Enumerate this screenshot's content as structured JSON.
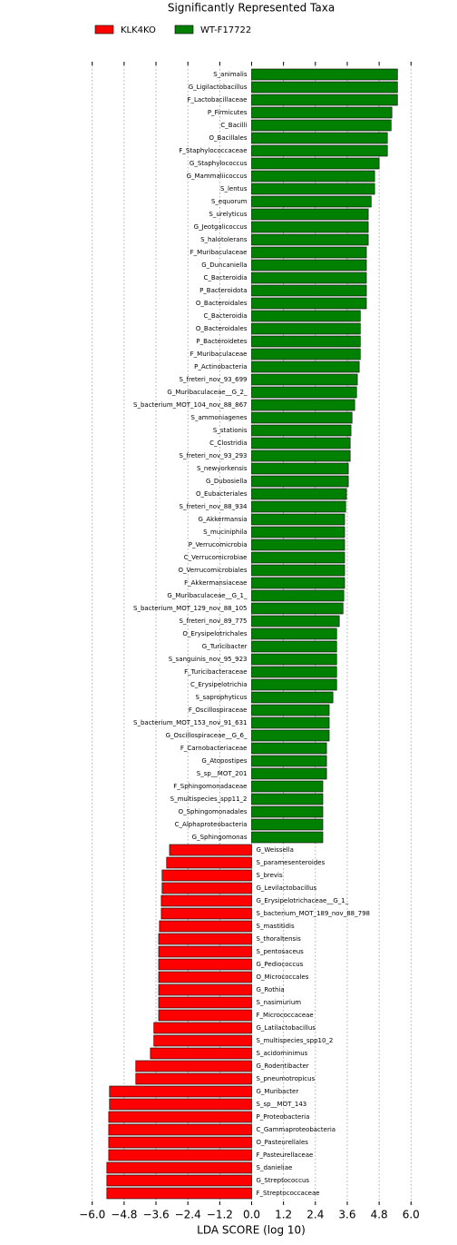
{
  "chart_data": {
    "type": "bar",
    "orientation": "horizontal",
    "title": "Significantly Represented Taxa",
    "xlabel": "LDA SCORE (log 10)",
    "xlim": [
      -6.4,
      6.4
    ],
    "xticks": [
      {
        "value": -6.0,
        "label": "−6.0"
      },
      {
        "value": -4.8,
        "label": "−4.8"
      },
      {
        "value": -3.6,
        "label": "−3.6"
      },
      {
        "value": -2.4,
        "label": "−2.4"
      },
      {
        "value": -1.2,
        "label": "−1.2"
      },
      {
        "value": 0,
        "label": "0.0"
      },
      {
        "value": 1.2,
        "label": "1.2"
      },
      {
        "value": 2.4,
        "label": "2.4"
      },
      {
        "value": 3.6,
        "label": "3.6"
      },
      {
        "value": 4.8,
        "label": "4.8"
      },
      {
        "value": 6.0,
        "label": "6.0"
      }
    ],
    "grid": true,
    "legend": "top-left",
    "series": [
      {
        "name": "KLK4KO",
        "color": "#ff0000",
        "categories": [
          "G_Weissella",
          "S_paramesenteroides",
          "S_brevis",
          "G_Levilactobacillus",
          "G_Erysipelotrichaceae__G_1_",
          "S_bacterium_MOT_189_nov_88_798",
          "S_mastitidis",
          "S_thoraltensis",
          "S_pentosaceus",
          "G_Pediococcus",
          "O_Micrococcales",
          "G_Rothia",
          "S_nasimurium",
          "F_Micrococcaceae",
          "G_Latilactobacillus",
          "S_multispecies_spp10_2",
          "S_acidominimus",
          "G_Rodentibacter",
          "S_pneumotropicus",
          "G_Muribacter",
          "S_sp__MOT_143",
          "P_Proteobacteria",
          "C_Gammaproteobacteria",
          "O_Pasteurellales",
          "F_Pasteurellaceae",
          "S_danieliae",
          "G_Streptococcus",
          "F_Streptococcaceae"
        ],
        "values": [
          -3.09,
          -3.2,
          -3.37,
          -3.37,
          -3.4,
          -3.4,
          -3.47,
          -3.5,
          -3.5,
          -3.5,
          -3.5,
          -3.5,
          -3.5,
          -3.5,
          -3.68,
          -3.68,
          -3.81,
          -4.36,
          -4.36,
          -5.35,
          -5.35,
          -5.38,
          -5.38,
          -5.38,
          -5.38,
          -5.45,
          -5.45,
          -5.45
        ]
      },
      {
        "name": "WT-F17722",
        "color": "#008000",
        "categories": [
          "S_animalis",
          "G_Ligilactobacillus",
          "F_Lactobacillaceae",
          "P_Firmicutes",
          "C_Bacilli",
          "O_Bacillales",
          "F_Staphylococcaceae",
          "G_Staphylococcus",
          "G_Mammaliicoccus",
          "S_lentus",
          "S_equorum",
          "S_urelyticus",
          "G_Jeotgalicoccus",
          "S_halotolerans",
          "F_Muribaculaceae",
          "G_Duncaniella",
          "C_Bacteroidia",
          "P_Bacteroidota",
          "O_Bacteroidales",
          "C_Bacteroidia",
          "O_Bacteroidales",
          "P_Bacteroidetes",
          "F_Muribaculaceae",
          "P_Actinobacteria",
          "S_freteri_nov_93_699",
          "G_Muribaculaceae__G_2_",
          "S_bacterium_MOT_104_nov_88_867",
          "S_ammoniagenes",
          "S_stationis",
          "C_Clostridia",
          "S_freteri_nov_93_293",
          "S_newyorkensis",
          "G_Dubosiella",
          "O_Eubacteriales",
          "S_freteri_nov_88_934",
          "G_Akkermansia",
          "S_muciniphila",
          "P_Verrucomicrobia",
          "C_Verrucomicrobiae",
          "O_Verrucomicrobiales",
          "F_Akkermansiaceae",
          "G_Muribaculaceae__G_1_",
          "S_bacterium_MOT_129_nov_88_105",
          "S_freteri_nov_89_775",
          "O_Erysipelotrichales",
          "G_Turicibacter",
          "S_sanguinis_nov_95_923",
          "F_Turicibacteraceae",
          "C_Erysipelotrichia",
          "S_saprophyticus",
          "F_Oscillospiraceae",
          "S_bacterium_MOT_153_nov_91_631",
          "G_Oscillospiraceae__G_6_",
          "F_Carnobacteriaceae",
          "G_Atopostipes",
          "S_sp__MOT_201",
          "F_Sphingomonadaceae",
          "S_multispecies_spp11_2",
          "O_Sphingomonadales",
          "C_Alphaproteobacteria",
          "G_Sphingomonas"
        ],
        "values": [
          5.49,
          5.49,
          5.49,
          5.28,
          5.25,
          5.11,
          5.11,
          4.8,
          4.63,
          4.63,
          4.5,
          4.39,
          4.39,
          4.39,
          4.32,
          4.32,
          4.32,
          4.32,
          4.32,
          4.09,
          4.09,
          4.09,
          4.09,
          4.05,
          3.98,
          3.95,
          3.88,
          3.78,
          3.74,
          3.71,
          3.71,
          3.64,
          3.64,
          3.57,
          3.54,
          3.5,
          3.5,
          3.5,
          3.5,
          3.5,
          3.5,
          3.47,
          3.44,
          3.3,
          3.2,
          3.2,
          3.2,
          3.2,
          3.2,
          3.06,
          2.92,
          2.92,
          2.92,
          2.82,
          2.82,
          2.82,
          2.68,
          2.68,
          2.68,
          2.68,
          2.68
        ]
      }
    ]
  }
}
